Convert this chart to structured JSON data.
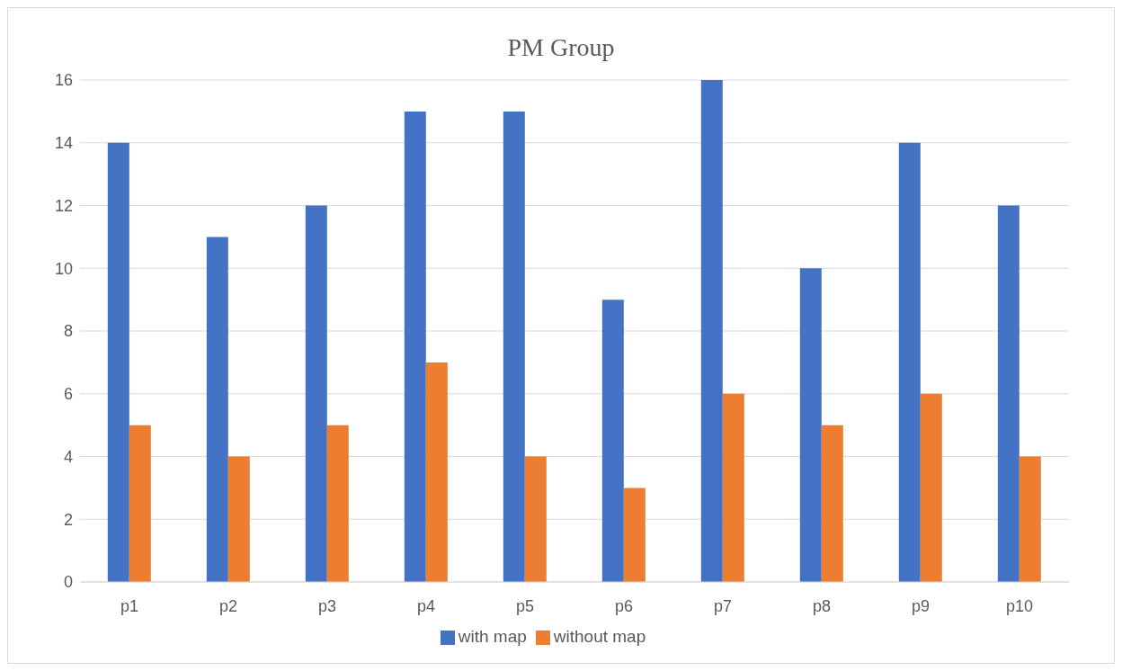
{
  "chart_data": {
    "type": "bar",
    "title": "PM Group",
    "categories": [
      "p1",
      "p2",
      "p3",
      "p4",
      "p5",
      "p6",
      "p7",
      "p8",
      "p9",
      "p10"
    ],
    "series": [
      {
        "name": "with map",
        "color": "#4472c4",
        "values": [
          14,
          11,
          12,
          15,
          15,
          9,
          16,
          10,
          14,
          12
        ]
      },
      {
        "name": "without map",
        "color": "#ed7d31",
        "values": [
          5,
          4,
          5,
          7,
          4,
          3,
          6,
          5,
          6,
          4
        ]
      }
    ],
    "ylim": [
      0,
      16
    ],
    "yticks": [
      0,
      2,
      4,
      6,
      8,
      10,
      12,
      14,
      16
    ],
    "grid": "y",
    "legend": "bottom"
  }
}
